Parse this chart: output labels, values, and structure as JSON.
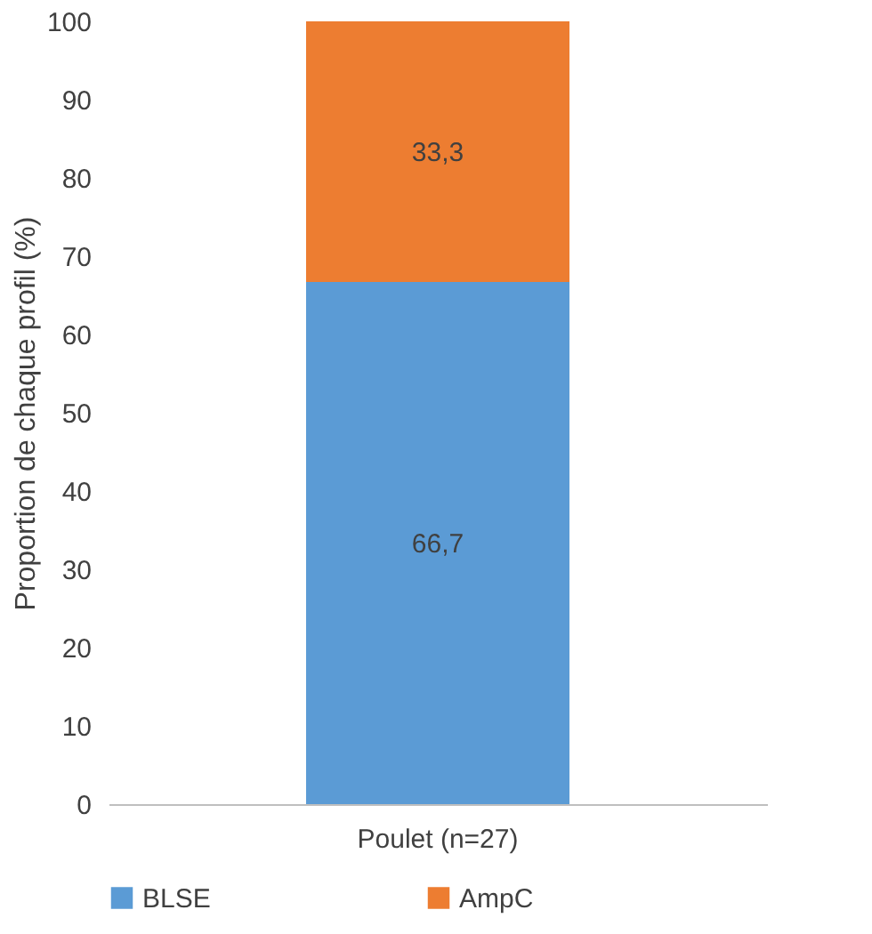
{
  "chart_data": {
    "type": "bar",
    "stacked": true,
    "ylabel": "Proportion de chaque profil (%)",
    "categories": [
      "Poulet (n=27)"
    ],
    "series": [
      {
        "name": "BLSE",
        "color": "#5b9bd5",
        "values": [
          66.7
        ],
        "value_labels": [
          "66,7"
        ]
      },
      {
        "name": "AmpC",
        "color": "#ed7d31",
        "values": [
          33.3
        ],
        "value_labels": [
          "33,3"
        ]
      }
    ],
    "ylim": [
      0,
      100
    ],
    "yticks": [
      0,
      10,
      20,
      30,
      40,
      50,
      60,
      70,
      80,
      90,
      100
    ],
    "grid": false,
    "legend": "bottom"
  }
}
